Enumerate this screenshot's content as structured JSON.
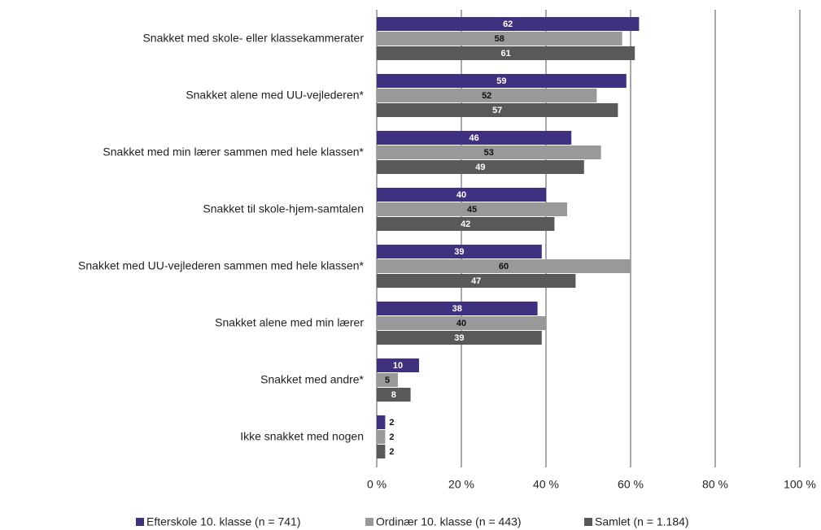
{
  "chart_data": {
    "type": "bar",
    "orientation": "horizontal",
    "categories": [
      "Snakket med skole- eller klassekammerater",
      "Snakket alene med UU-vejlederen*",
      "Snakket med min lærer sammen med hele klassen*",
      "Snakket til skole-hjem-samtalen",
      "Snakket med UU-vejlederen sammen med hele klassen*",
      "Snakket alene med min lærer",
      "Snakket med andre*",
      "Ikke snakket med nogen"
    ],
    "series": [
      {
        "name": "Efterskole 10. klasse (n = 741)",
        "color": "#3f3080",
        "values": [
          62,
          59,
          46,
          40,
          39,
          38,
          10,
          2
        ]
      },
      {
        "name": "Ordinær 10. klasse (n = 443)",
        "color": "#999999",
        "values": [
          58,
          52,
          53,
          45,
          60,
          40,
          5,
          2
        ]
      },
      {
        "name": "Samlet (n = 1.184)",
        "color": "#595959",
        "values": [
          61,
          57,
          49,
          42,
          47,
          39,
          8,
          2
        ]
      }
    ],
    "xlim": [
      0,
      100
    ],
    "xticks": [
      {
        "value": 0,
        "label": "0 %"
      },
      {
        "value": 20,
        "label": "20 %"
      },
      {
        "value": 40,
        "label": "40 %"
      },
      {
        "value": 60,
        "label": "60 %"
      },
      {
        "value": 80,
        "label": "80 %"
      },
      {
        "value": 100,
        "label": "100 %"
      }
    ],
    "grid": true,
    "legend": "bottom"
  }
}
